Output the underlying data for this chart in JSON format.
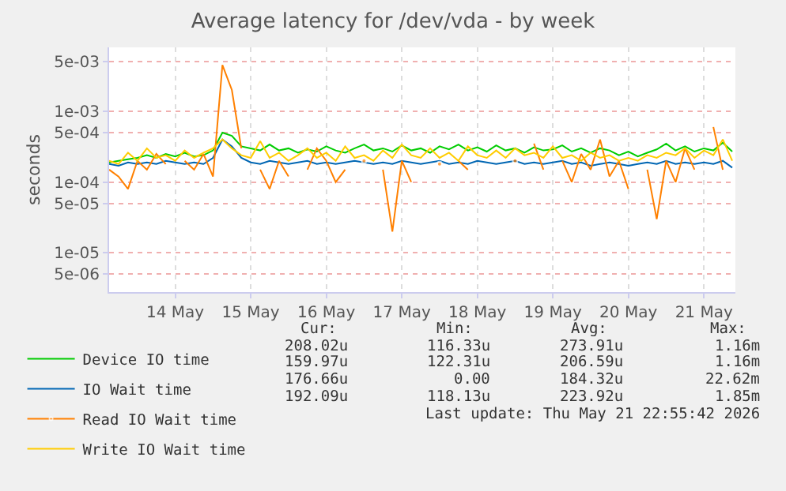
{
  "chart_data": {
    "type": "line",
    "title": "Average latency for /dev/vda - by week",
    "ylabel": "seconds",
    "x": [
      "2026-05-13T15:00",
      "2026-05-13T18:00",
      "2026-05-13T21:00",
      "2026-05-14T00:00",
      "2026-05-14T03:00",
      "2026-05-14T06:00",
      "2026-05-14T09:00",
      "2026-05-14T12:00",
      "2026-05-14T15:00",
      "2026-05-14T18:00",
      "2026-05-14T21:00",
      "2026-05-15T00:00",
      "2026-05-15T03:00",
      "2026-05-15T06:00",
      "2026-05-15T09:00",
      "2026-05-15T12:00",
      "2026-05-15T15:00",
      "2026-05-15T18:00",
      "2026-05-15T21:00",
      "2026-05-16T00:00",
      "2026-05-16T03:00",
      "2026-05-16T06:00",
      "2026-05-16T09:00",
      "2026-05-16T12:00",
      "2026-05-16T15:00",
      "2026-05-16T18:00",
      "2026-05-16T21:00",
      "2026-05-17T00:00",
      "2026-05-17T03:00",
      "2026-05-17T06:00",
      "2026-05-17T09:00",
      "2026-05-17T12:00",
      "2026-05-17T15:00",
      "2026-05-17T18:00",
      "2026-05-17T21:00",
      "2026-05-18T00:00",
      "2026-05-18T03:00",
      "2026-05-18T06:00",
      "2026-05-18T09:00",
      "2026-05-18T12:00",
      "2026-05-18T15:00",
      "2026-05-18T18:00",
      "2026-05-18T21:00",
      "2026-05-19T00:00",
      "2026-05-19T03:00",
      "2026-05-19T06:00",
      "2026-05-19T09:00",
      "2026-05-19T12:00",
      "2026-05-19T15:00",
      "2026-05-19T18:00",
      "2026-05-19T21:00",
      "2026-05-20T00:00",
      "2026-05-20T03:00",
      "2026-05-20T06:00",
      "2026-05-20T09:00",
      "2026-05-20T12:00",
      "2026-05-20T15:00",
      "2026-05-20T18:00",
      "2026-05-20T21:00",
      "2026-05-21T00:00",
      "2026-05-21T03:00",
      "2026-05-21T06:00",
      "2026-05-21T09:00",
      "2026-05-21T12:00",
      "2026-05-21T15:00",
      "2026-05-21T18:00",
      "2026-05-21T21:00"
    ],
    "series": [
      {
        "name": "Device IO time",
        "color": "#00cc00",
        "values": [
          0.00019,
          0.0002,
          0.00021,
          0.00022,
          0.00024,
          0.00022,
          0.00025,
          0.00023,
          0.00026,
          0.00023,
          0.00024,
          0.00028,
          0.0005,
          0.00045,
          0.00032,
          0.0003,
          0.00028,
          0.00034,
          0.00028,
          0.0003,
          0.00026,
          0.00029,
          0.00027,
          0.00032,
          0.00028,
          0.00026,
          0.0003,
          0.00034,
          0.00028,
          0.0003,
          0.00027,
          0.00033,
          0.00028,
          0.0003,
          0.00026,
          0.00032,
          0.00029,
          0.00034,
          0.00028,
          0.00031,
          0.00027,
          0.00033,
          0.00028,
          0.0003,
          0.00026,
          0.00031,
          0.00028,
          0.00029,
          0.00033,
          0.00027,
          0.0003,
          0.00026,
          0.0003,
          0.00028,
          0.00024,
          0.00027,
          0.00023,
          0.00026,
          0.00029,
          0.00035,
          0.00028,
          0.00032,
          0.00027,
          0.0003,
          0.00028,
          0.00036,
          0.00027
        ]
      },
      {
        "name": "IO Wait time",
        "color": "#0066b3",
        "values": [
          0.00018,
          0.00017,
          0.00019,
          0.00018,
          0.00019,
          0.00018,
          0.0002,
          0.00019,
          0.00018,
          0.00019,
          0.00018,
          0.00022,
          0.0004,
          0.00032,
          0.00022,
          0.00019,
          0.00018,
          0.0002,
          0.00019,
          0.00018,
          0.00019,
          0.0002,
          0.00018,
          0.00019,
          0.00018,
          0.00019,
          0.0002,
          0.00019,
          0.00018,
          0.00019,
          0.00018,
          0.0002,
          0.00019,
          0.00018,
          0.00019,
          0.0002,
          0.00018,
          0.00019,
          0.00018,
          0.0002,
          0.00019,
          0.00018,
          0.00019,
          0.0002,
          0.00018,
          0.00019,
          0.00018,
          0.00019,
          0.0002,
          0.00018,
          0.00019,
          0.00017,
          0.00018,
          0.00019,
          0.00018,
          0.00017,
          0.00018,
          0.00019,
          0.00018,
          0.0002,
          0.00018,
          0.00019,
          0.00018,
          0.00019,
          0.00018,
          0.0002,
          0.00016
        ]
      },
      {
        "name": "Read IO Wait time",
        "color": "#ff8000",
        "values": [
          0.00015,
          0.00012,
          8e-05,
          0.0002,
          0.00015,
          0.00025,
          0.00018,
          null,
          0.0002,
          0.00015,
          0.00025,
          0.00012,
          0.0045,
          0.002,
          0.0003,
          null,
          0.00015,
          8e-05,
          0.0002,
          0.00012,
          null,
          0.00015,
          0.0003,
          0.0002,
          0.0001,
          0.00015,
          null,
          0.0002,
          null,
          0.00015,
          2e-05,
          0.0002,
          0.0001,
          null,
          null,
          0.00018,
          null,
          0.0002,
          0.00015,
          null,
          null,
          null,
          null,
          0.0002,
          null,
          0.00035,
          0.00015,
          null,
          0.0002,
          0.0001,
          0.00025,
          0.00015,
          0.0004,
          0.00012,
          0.0002,
          8e-05,
          null,
          0.00015,
          3e-05,
          0.0002,
          0.0001,
          0.0003,
          0.00015,
          null,
          0.0006,
          0.00015,
          null
        ]
      },
      {
        "name": "Write IO Wait time",
        "color": "#ffcc00",
        "values": [
          0.0002,
          0.00018,
          0.00026,
          0.0002,
          0.0003,
          0.00022,
          0.00024,
          0.0002,
          0.00028,
          0.00022,
          0.00026,
          0.0003,
          0.0004,
          0.0003,
          0.00024,
          0.00022,
          0.00038,
          0.00022,
          0.00026,
          0.0002,
          0.00024,
          0.0003,
          0.00022,
          0.00026,
          0.0002,
          0.00032,
          0.00022,
          0.00024,
          0.0002,
          0.00028,
          0.00022,
          0.00034,
          0.00024,
          0.00022,
          0.0003,
          0.00022,
          0.00026,
          0.0002,
          0.00032,
          0.00024,
          0.00022,
          0.00028,
          0.00022,
          0.0003,
          0.00024,
          0.00026,
          0.00022,
          0.00032,
          0.00022,
          0.00024,
          0.0002,
          0.00026,
          0.00022,
          0.00024,
          0.0002,
          0.00022,
          0.0002,
          0.00024,
          0.00022,
          0.00026,
          0.00024,
          0.0003,
          0.00022,
          0.00028,
          0.00024,
          0.0004,
          0.0002
        ]
      }
    ],
    "log": true,
    "grid": true,
    "legend": "bottom left",
    "xlim": [
      "2026-05-13T15:00",
      "2026-05-21T22:00"
    ],
    "xticks": [
      {
        "value": "2026-05-14T12:00",
        "label": "14 May"
      },
      {
        "value": "2026-05-15T12:00",
        "label": "15 May"
      },
      {
        "value": "2026-05-16T12:00",
        "label": "16 May"
      },
      {
        "value": "2026-05-17T12:00",
        "label": "17 May"
      },
      {
        "value": "2026-05-18T12:00",
        "label": "18 May"
      },
      {
        "value": "2026-05-19T12:00",
        "label": "19 May"
      },
      {
        "value": "2026-05-20T12:00",
        "label": "20 May"
      },
      {
        "value": "2026-05-21T12:00",
        "label": "21 May"
      }
    ],
    "ylim": [
      2.8e-06,
      0.008
    ],
    "yticks": [
      {
        "value": 5e-06,
        "label": "5e-06"
      },
      {
        "value": 1e-05,
        "label": "1e-05"
      },
      {
        "value": 5e-05,
        "label": "5e-05"
      },
      {
        "value": 0.0001,
        "label": "1e-04"
      },
      {
        "value": 0.0005,
        "label": "5e-04"
      },
      {
        "value": 0.001,
        "label": "1e-03"
      },
      {
        "value": 0.005,
        "label": "5e-03"
      }
    ],
    "annotations": [
      "Cur:",
      "Min:",
      "Avg:",
      "Max:",
      "208.02u",
      "116.33u",
      "273.91u",
      "1.16m",
      "159.97u",
      "122.31u",
      "206.59u",
      "1.16m",
      "176.66u",
      "0.00",
      "184.32u",
      "22.62m",
      "192.09u",
      "118.13u",
      "223.92u",
      "1.85m",
      "Last update: Thu May 21 22:55:42 2026"
    ]
  }
}
